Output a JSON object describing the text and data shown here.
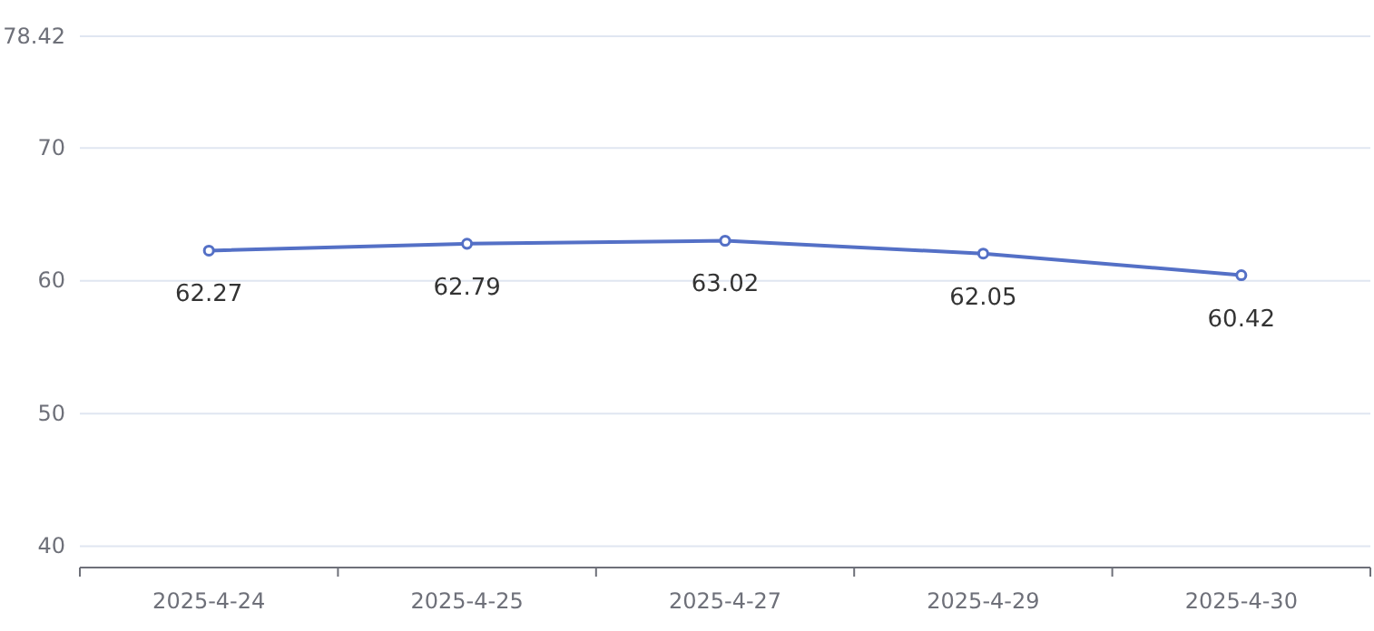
{
  "chart_data": {
    "type": "line",
    "categories": [
      "2025-4-24",
      "2025-4-25",
      "2025-4-27",
      "2025-4-29",
      "2025-4-30"
    ],
    "series": [
      {
        "color": "#5470c6",
        "values": [
          62.27,
          62.79,
          63.02,
          62.05,
          60.42
        ]
      }
    ],
    "ylim": [
      38.4,
      78.42
    ],
    "yticks": [
      40,
      50,
      60,
      70,
      78.42
    ],
    "grid": "y",
    "marker": "circle",
    "line_style": "solid",
    "data_labels": true
  }
}
